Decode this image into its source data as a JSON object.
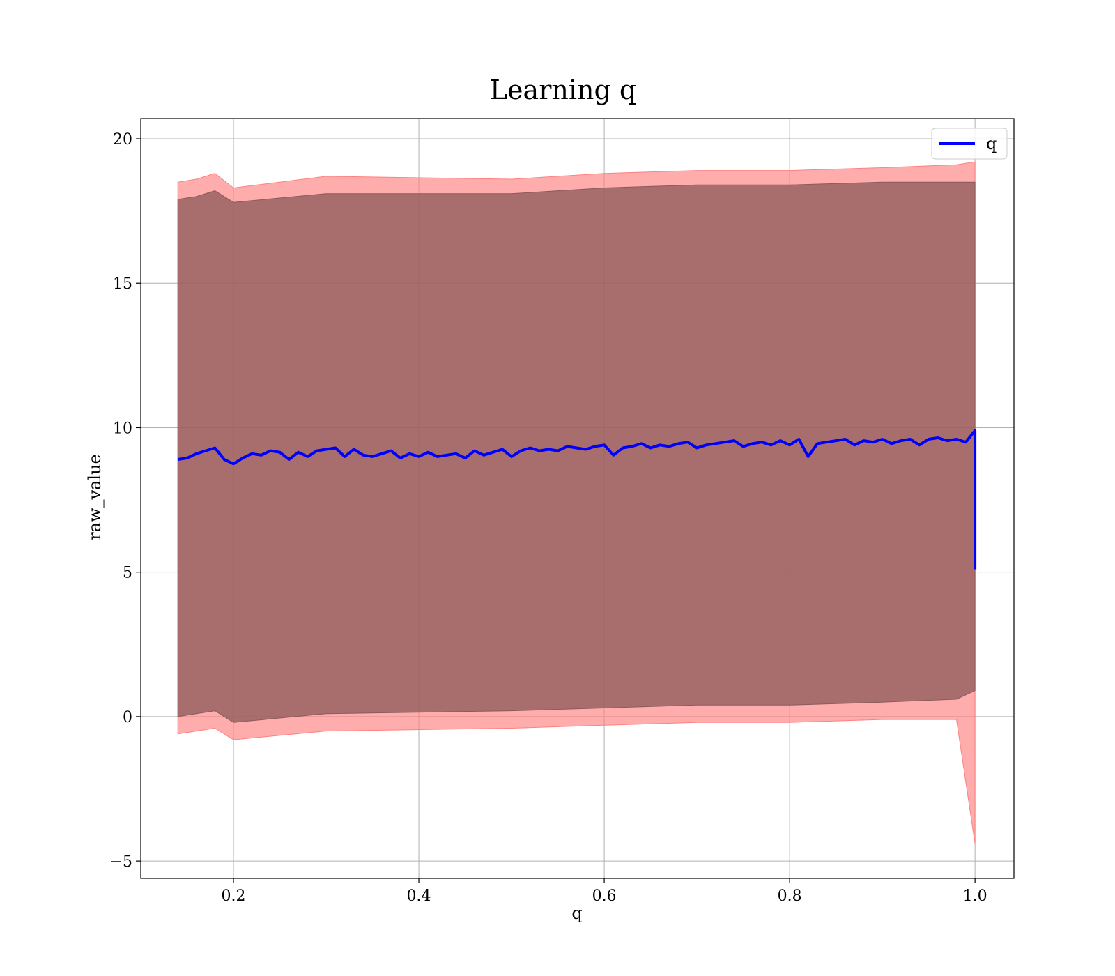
{
  "chart_data": {
    "type": "line",
    "title": "Learning q",
    "xlabel": "q",
    "ylabel": "raw_value",
    "xlim": [
      0.1,
      1.042
    ],
    "ylim": [
      -5.6,
      20.7
    ],
    "xticks": [
      0.2,
      0.4,
      0.6,
      0.8,
      1.0
    ],
    "xtick_labels": [
      "0.2",
      "0.4",
      "0.6",
      "0.8",
      "1.0"
    ],
    "yticks": [
      -5,
      0,
      5,
      10,
      15,
      20
    ],
    "ytick_labels": [
      "−5",
      "0",
      "5",
      "10",
      "15",
      "20"
    ],
    "grid": true,
    "legend": {
      "position": "top-right",
      "entries": [
        {
          "label": "q",
          "color": "#0000ff"
        }
      ]
    },
    "series": [
      {
        "name": "q",
        "color": "#0000ff",
        "x": [
          0.14,
          0.15,
          0.16,
          0.17,
          0.18,
          0.19,
          0.2,
          0.21,
          0.22,
          0.23,
          0.24,
          0.25,
          0.26,
          0.27,
          0.28,
          0.29,
          0.3,
          0.31,
          0.32,
          0.33,
          0.34,
          0.35,
          0.36,
          0.37,
          0.38,
          0.39,
          0.4,
          0.41,
          0.42,
          0.43,
          0.44,
          0.45,
          0.46,
          0.47,
          0.48,
          0.49,
          0.5,
          0.51,
          0.52,
          0.53,
          0.54,
          0.55,
          0.56,
          0.57,
          0.58,
          0.59,
          0.6,
          0.61,
          0.62,
          0.63,
          0.64,
          0.65,
          0.66,
          0.67,
          0.68,
          0.69,
          0.7,
          0.71,
          0.72,
          0.73,
          0.74,
          0.75,
          0.76,
          0.77,
          0.78,
          0.79,
          0.8,
          0.81,
          0.82,
          0.83,
          0.84,
          0.85,
          0.86,
          0.87,
          0.88,
          0.89,
          0.9,
          0.91,
          0.92,
          0.93,
          0.94,
          0.95,
          0.96,
          0.97,
          0.98,
          0.99,
          1.0,
          1.0
        ],
        "y": [
          8.9,
          8.95,
          9.1,
          9.2,
          9.3,
          8.9,
          8.75,
          8.95,
          9.1,
          9.05,
          9.2,
          9.15,
          8.9,
          9.15,
          9.0,
          9.2,
          9.25,
          9.3,
          9.0,
          9.25,
          9.05,
          9.0,
          9.1,
          9.2,
          8.95,
          9.1,
          9.0,
          9.15,
          9.0,
          9.05,
          9.1,
          8.95,
          9.2,
          9.05,
          9.15,
          9.25,
          9.0,
          9.2,
          9.3,
          9.2,
          9.25,
          9.2,
          9.35,
          9.3,
          9.25,
          9.35,
          9.4,
          9.05,
          9.3,
          9.35,
          9.45,
          9.3,
          9.4,
          9.35,
          9.45,
          9.5,
          9.3,
          9.4,
          9.45,
          9.5,
          9.55,
          9.35,
          9.45,
          9.5,
          9.4,
          9.55,
          9.4,
          9.6,
          9.0,
          9.45,
          9.5,
          9.55,
          9.6,
          9.4,
          9.55,
          9.5,
          9.6,
          9.45,
          9.55,
          9.6,
          9.4,
          9.6,
          9.65,
          9.55,
          9.6,
          9.5,
          9.9,
          5.1
        ]
      },
      {
        "name": "",
        "kind": "band",
        "color": "#ff8080",
        "x": [
          0.14,
          0.16,
          0.18,
          0.2,
          0.3,
          0.5,
          0.6,
          0.7,
          0.8,
          0.9,
          0.98,
          1.0
        ],
        "upper": [
          18.5,
          18.6,
          18.8,
          18.3,
          18.7,
          18.6,
          18.8,
          18.9,
          18.9,
          19.0,
          19.1,
          19.2
        ],
        "lower": [
          -0.6,
          -0.5,
          -0.4,
          -0.8,
          -0.5,
          -0.4,
          -0.3,
          -0.2,
          -0.2,
          -0.1,
          -0.1,
          -4.4
        ]
      },
      {
        "name": "",
        "kind": "band",
        "color": "#8b5a5a",
        "x": [
          0.14,
          0.16,
          0.18,
          0.2,
          0.3,
          0.5,
          0.6,
          0.7,
          0.8,
          0.9,
          0.98,
          1.0
        ],
        "upper": [
          17.9,
          18.0,
          18.2,
          17.8,
          18.1,
          18.1,
          18.3,
          18.4,
          18.4,
          18.5,
          18.5,
          18.5
        ],
        "lower": [
          0.0,
          0.1,
          0.2,
          -0.2,
          0.1,
          0.2,
          0.3,
          0.4,
          0.4,
          0.5,
          0.6,
          0.9
        ]
      }
    ]
  }
}
